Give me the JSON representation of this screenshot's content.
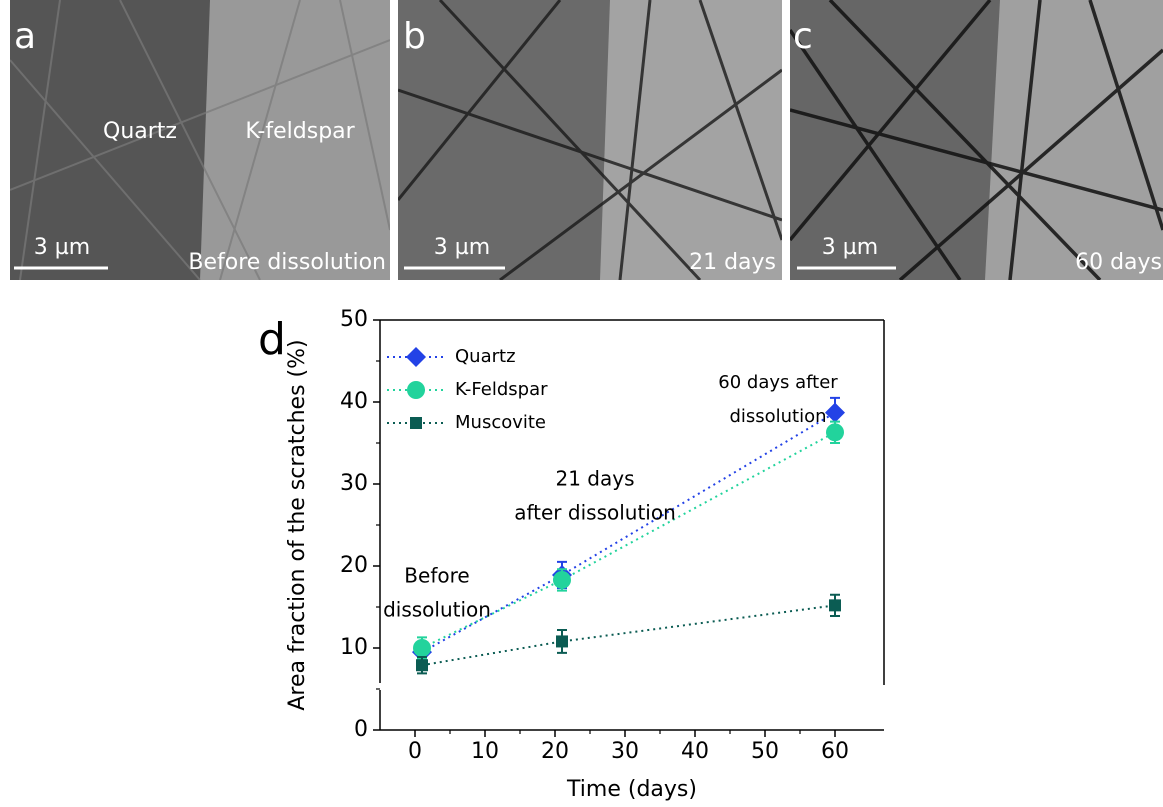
{
  "panels": {
    "a": {
      "letter": "a",
      "left_label": "Quartz",
      "right_label": "K-feldspar",
      "scale": "3 µm",
      "caption": "Before dissolution"
    },
    "b": {
      "letter": "b",
      "scale": "3 µm",
      "caption": "21 days"
    },
    "c": {
      "letter": "c",
      "scale": "3 µm",
      "caption": "60 days"
    }
  },
  "chart_data": {
    "type": "line",
    "panel_letter": "d",
    "x_label": "Time (days)",
    "y_label": "Area fraction of the scratches (%)",
    "x": [
      1,
      21,
      60
    ],
    "series": [
      {
        "name": "Quartz",
        "color": "#2342e6",
        "marker": "diamond",
        "values": [
          9.5,
          18.9,
          38.7
        ],
        "errors": [
          1.0,
          1.6,
          1.8
        ]
      },
      {
        "name": "K-Feldspar",
        "color": "#22d39c",
        "marker": "circle",
        "values": [
          10.0,
          18.3,
          36.3
        ],
        "errors": [
          1.3,
          1.3,
          1.3
        ]
      },
      {
        "name": "Muscovite",
        "color": "#0b5c53",
        "marker": "square",
        "values": [
          7.9,
          10.8,
          15.2
        ],
        "errors": [
          1.0,
          1.4,
          1.3
        ]
      }
    ],
    "annotations": [
      {
        "lines": [
          "Before",
          "dissolution"
        ]
      },
      {
        "lines": [
          "21 days",
          "after dissolution"
        ]
      },
      {
        "lines": [
          "60 days after",
          "dissolution"
        ]
      }
    ],
    "xlim": [
      -5,
      67
    ],
    "ylim": [
      0,
      50
    ],
    "xticks": [
      0,
      10,
      20,
      30,
      40,
      50,
      60
    ],
    "yticks": [
      0,
      10,
      20,
      30,
      40,
      50
    ],
    "legend": "upper left"
  }
}
